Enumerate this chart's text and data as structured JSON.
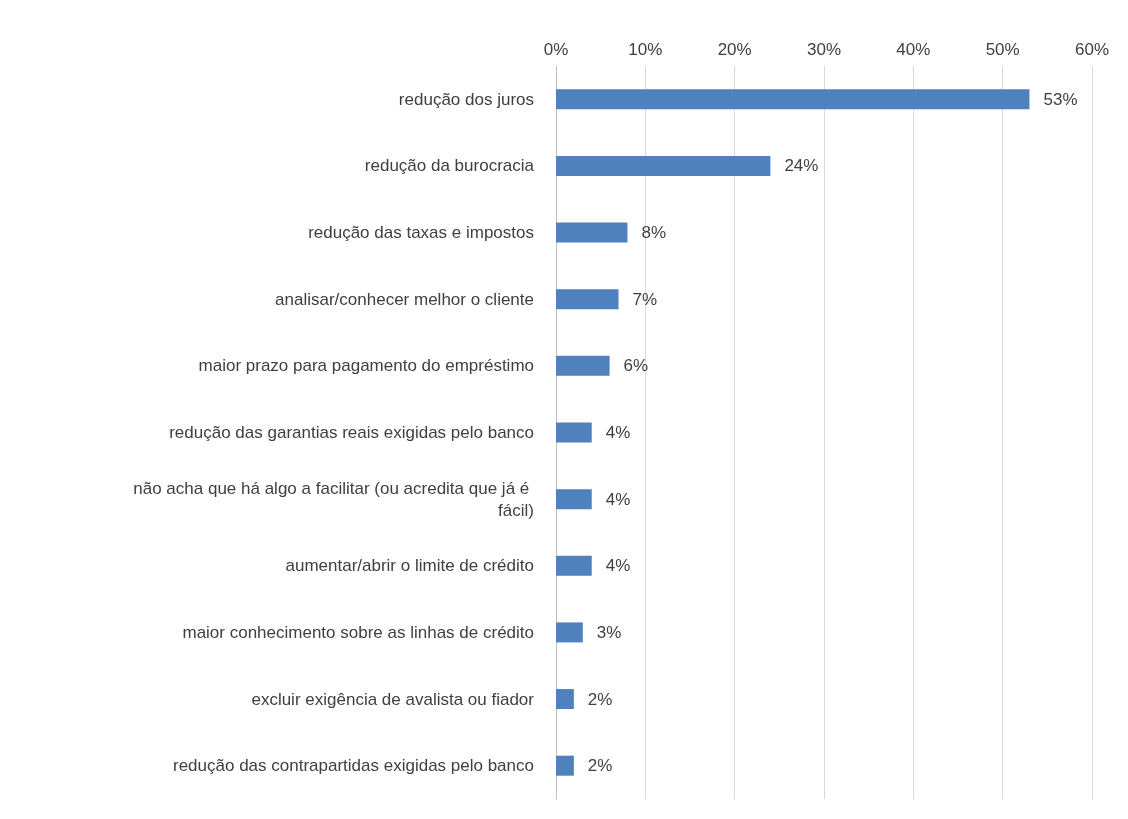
{
  "chart_data": {
    "type": "bar",
    "orientation": "horizontal",
    "categories": [
      "redução dos juros",
      "redução da burocracia",
      "redução das taxas e impostos",
      "analisar/conhecer melhor o cliente",
      "maior prazo para pagamento do empréstimo",
      "redução das garantias reais exigidas pelo banco",
      "não acha que há algo a facilitar (ou acredita que já é fácil)",
      "aumentar/abrir o limite de crédito",
      "maior conhecimento sobre as linhas de crédito",
      "excluir exigência de avalista ou fiador",
      "redução das contrapartidas exigidas pelo banco"
    ],
    "values": [
      53,
      24,
      8,
      7,
      6,
      4,
      4,
      4,
      3,
      2,
      2
    ],
    "value_labels": [
      "53%",
      "24%",
      "8%",
      "7%",
      "6%",
      "4%",
      "4%",
      "4%",
      "3%",
      "2%",
      "2%"
    ],
    "color": "#4f81bd",
    "xlim": [
      0,
      60
    ],
    "xticks": [
      {
        "value": 0,
        "label": "0%"
      },
      {
        "value": 10,
        "label": "10%"
      },
      {
        "value": 20,
        "label": "20%"
      },
      {
        "value": 30,
        "label": "30%"
      },
      {
        "value": 40,
        "label": "40%"
      },
      {
        "value": 50,
        "label": "50%"
      },
      {
        "value": 60,
        "label": "60%"
      }
    ],
    "grid": "x"
  }
}
